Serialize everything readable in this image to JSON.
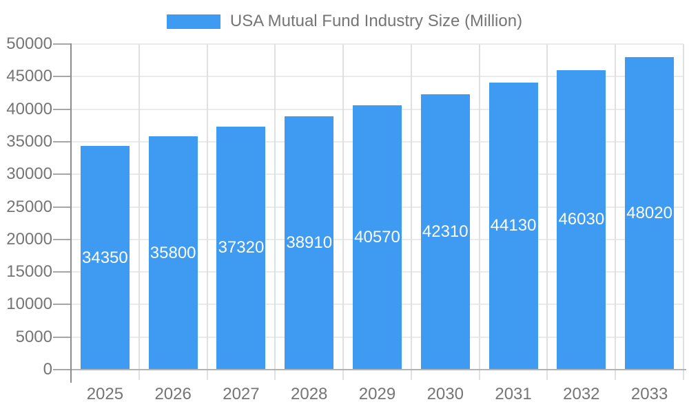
{
  "legend": {
    "label": "USA Mutual Fund Industry Size (Million)"
  },
  "chart_data": {
    "type": "bar",
    "title": "USA Mutual Fund Industry Size (Million)",
    "series_name": "USA Mutual Fund Industry Size (Million)",
    "categories": [
      "2025",
      "2026",
      "2027",
      "2028",
      "2029",
      "2030",
      "2031",
      "2032",
      "2033"
    ],
    "values": [
      34350,
      35800,
      37320,
      38910,
      40570,
      42310,
      44130,
      46030,
      48020
    ],
    "bar_value_labels": [
      "34350",
      "35800",
      "37320",
      "38910",
      "40570",
      "42310",
      "44130",
      "46030",
      "48020"
    ],
    "xlabel": "",
    "ylabel": "",
    "ylim": [
      0,
      50000
    ],
    "ytick_step": 5000,
    "yticks": [
      0,
      5000,
      10000,
      15000,
      20000,
      25000,
      30000,
      35000,
      40000,
      45000,
      50000
    ],
    "grid": true,
    "legend_position": "top-center",
    "colors": {
      "bar": "#3E9BF1",
      "bar_label": "#FFFFFF",
      "axis_text": "#757575",
      "h_grid_line": "#EAEAEA",
      "v_grid_line": "#E0E0E0",
      "y_axis_line": "#8C8C8C",
      "baseline": "#B3B3B3",
      "y_tick_mark": "#A6A6A6",
      "background": "#FFFFFF"
    }
  }
}
